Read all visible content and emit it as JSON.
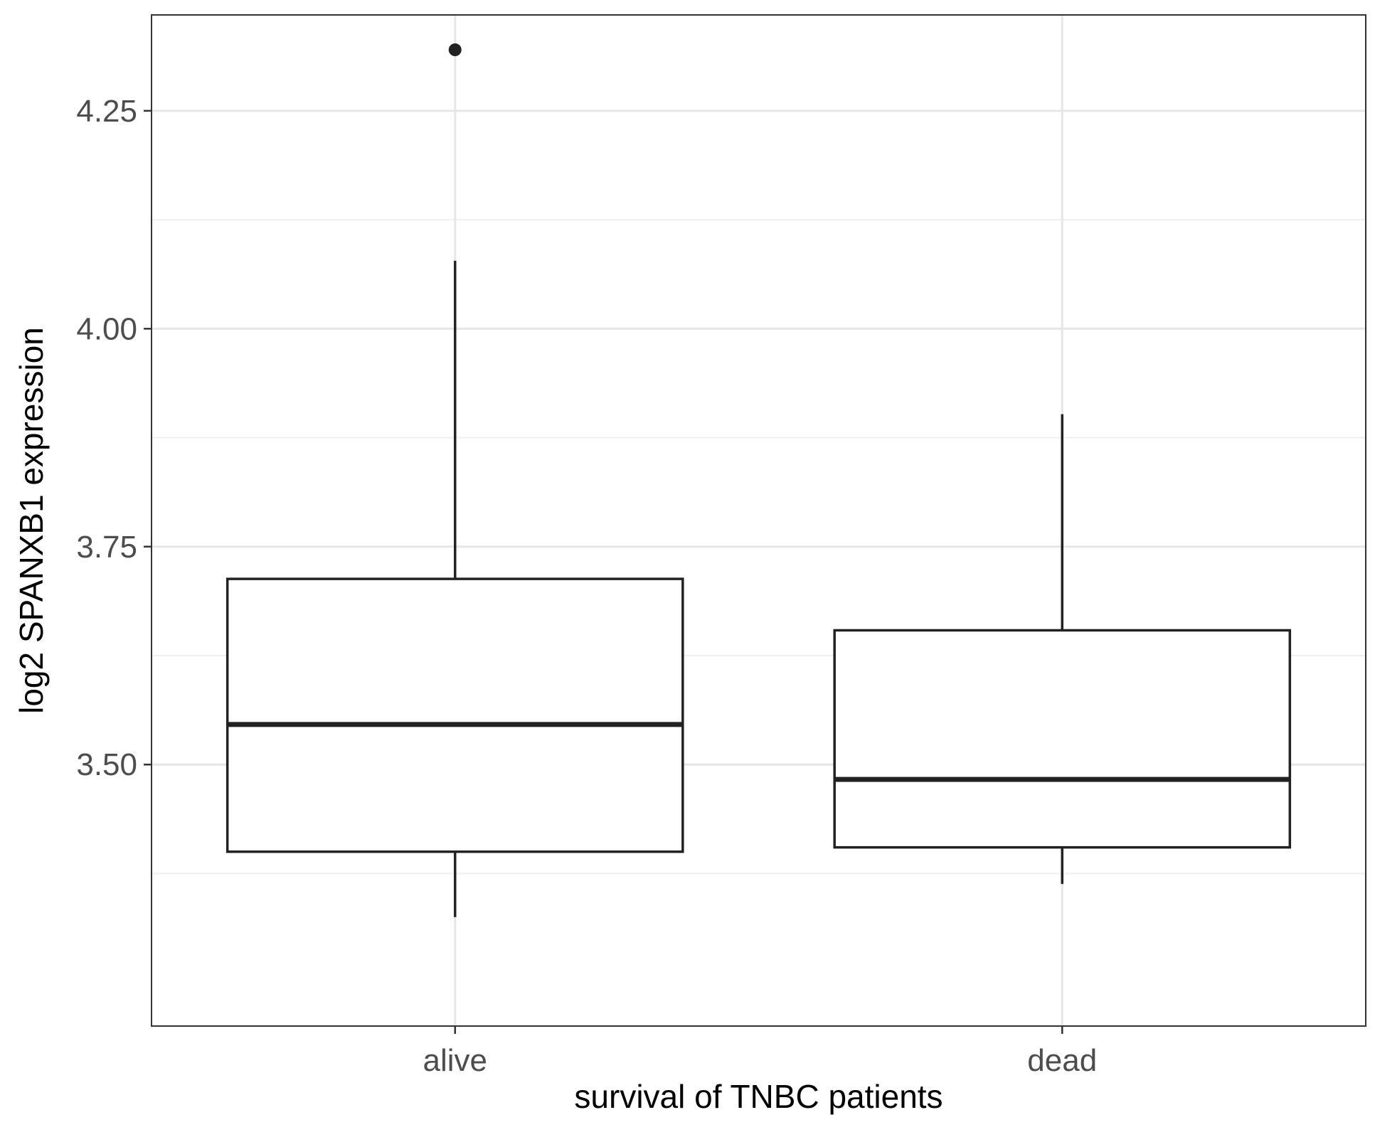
{
  "chart_data": {
    "type": "boxplot",
    "title": "",
    "xlabel": "survival of TNBC patients",
    "ylabel": "log2 SPANXB1 expression",
    "categories": [
      "alive",
      "dead"
    ],
    "ylim": [
      3.2,
      4.36
    ],
    "y_ticks": [
      3.5,
      3.75,
      4.0,
      4.25
    ],
    "y_tick_labels": [
      "3.50",
      "3.75",
      "4.00",
      "4.25"
    ],
    "y_minor_ticks": [
      3.375,
      3.625,
      3.875,
      4.125
    ],
    "grid": true,
    "boxes": [
      {
        "category": "alive",
        "whisker_low": 3.325,
        "q1": 3.4,
        "median": 3.546,
        "q3": 3.713,
        "whisker_high": 4.078,
        "outliers": [
          4.32
        ]
      },
      {
        "category": "dead",
        "whisker_low": 3.363,
        "q1": 3.405,
        "median": 3.483,
        "q3": 3.654,
        "whisker_high": 3.902,
        "outliers": []
      }
    ],
    "colors": {
      "box_stroke": "#222222",
      "panel_border": "#333333",
      "grid_major": "#e6e6e6",
      "grid_minor": "#efefef",
      "tick_text": "#4d4d4d",
      "axis_title": "#000000",
      "background": "#ffffff"
    }
  }
}
